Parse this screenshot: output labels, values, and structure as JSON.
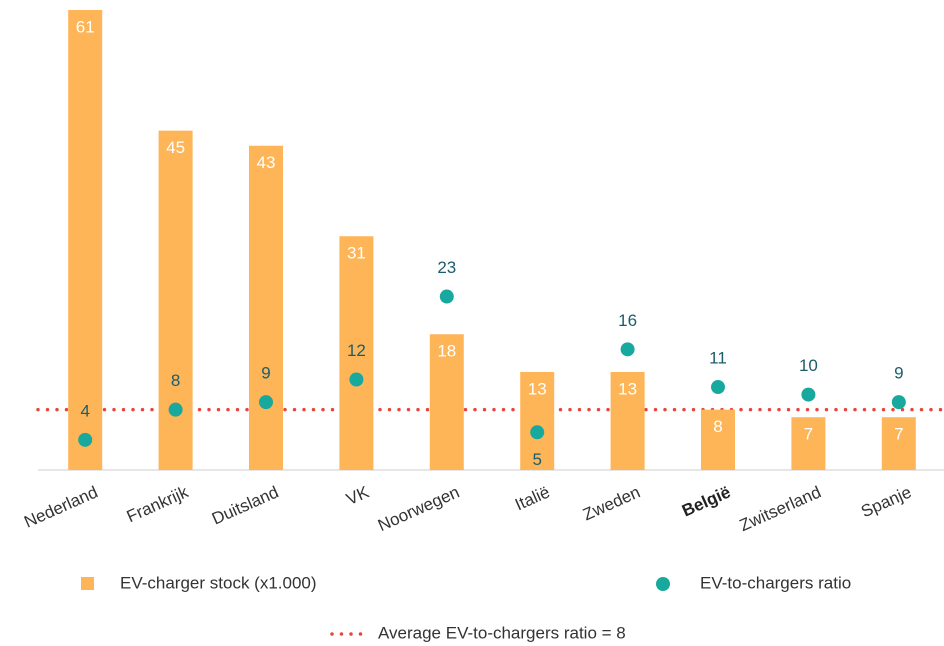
{
  "chart_data": {
    "type": "bar",
    "categories": [
      "Nederland",
      "Frankrijk",
      "Duitsland",
      "VK",
      "Noorwegen",
      "Italië",
      "Zweden",
      "België",
      "Zwitserland",
      "Spanje"
    ],
    "highlight_index": 7,
    "series": [
      {
        "name": "EV-charger stock (x1.000)",
        "color": "#fdb557",
        "type": "bar",
        "values": [
          61,
          45,
          43,
          31,
          18,
          13,
          13,
          8,
          7,
          7
        ]
      },
      {
        "name": "EV-to-chargers ratio",
        "color": "#17a89e",
        "type": "scatter",
        "axis": "y2",
        "values": [
          4,
          8,
          9,
          12,
          23,
          5,
          16,
          11,
          10,
          9
        ]
      }
    ],
    "reference_line": {
      "label": "Average EV-to-chargers ratio = 8",
      "value": 8,
      "color": "#e8463c",
      "axis": "y2"
    },
    "ylim": [
      0,
      61
    ],
    "y2lim": [
      0,
      61
    ]
  }
}
